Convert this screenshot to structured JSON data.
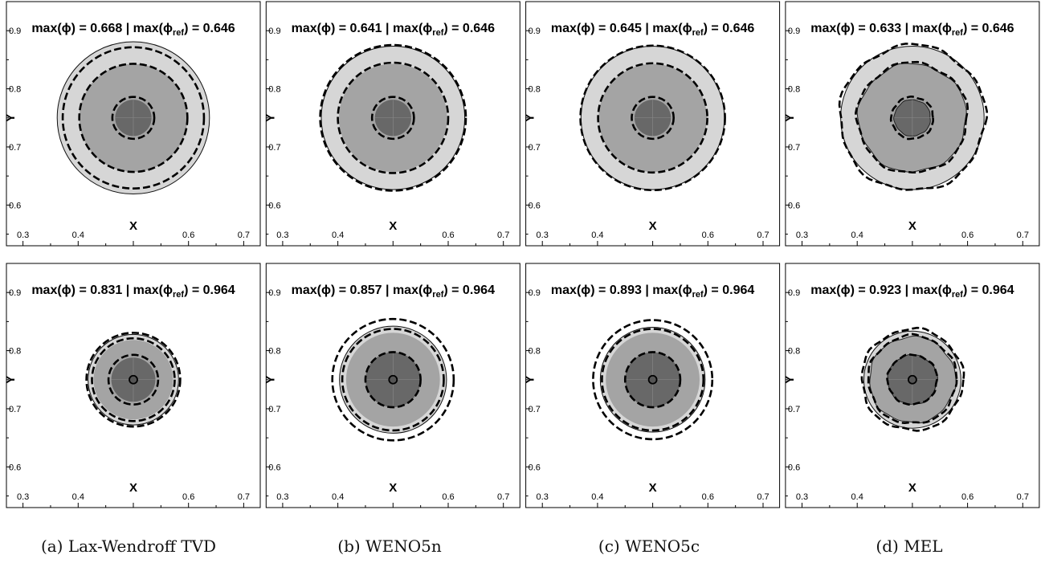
{
  "figure": {
    "x_axis_label": "X",
    "y_axis_label": "Y",
    "x_ticks": [
      "0.3",
      "0.4",
      "0.5",
      "0.6",
      "0.7"
    ],
    "y_ticks": [
      "0.6",
      "0.7",
      "0.8",
      "0.9"
    ],
    "colors": {
      "outer_band": "#d6d6d6",
      "middle_band": "#a4a4a4",
      "core": "#686868",
      "contour": "#000000",
      "frame": "#000000"
    },
    "captions": [
      {
        "tag": "(a)",
        "label": "Lax-Wendroff TVD"
      },
      {
        "tag": "(b)",
        "label": "WENO5n"
      },
      {
        "tag": "(c)",
        "label": "WENO5c"
      },
      {
        "tag": "(d)",
        "label": "MEL"
      }
    ]
  },
  "chart_data": [
    {
      "type": "contour",
      "row": 1,
      "col": 1,
      "max_phi": "0.668",
      "max_phi_ref": "0.646",
      "xlim": [
        0.27,
        0.73
      ],
      "ylim": [
        0.53,
        0.95
      ],
      "center": [
        0.5,
        0.75
      ],
      "filled_radii": [
        0.138,
        0.098,
        0.033
      ],
      "dashed_radii": [
        0.128,
        0.098,
        0.038
      ],
      "solid_outer_radius": 0.138,
      "dot": false,
      "irregular": false
    },
    {
      "type": "contour",
      "row": 1,
      "col": 2,
      "max_phi": "0.641",
      "max_phi_ref": "0.646",
      "xlim": [
        0.27,
        0.73
      ],
      "ylim": [
        0.53,
        0.95
      ],
      "center": [
        0.5,
        0.75
      ],
      "filled_radii": [
        0.13,
        0.098,
        0.033
      ],
      "dashed_radii": [
        0.132,
        0.1,
        0.038
      ],
      "solid_outer_radius": 0.13,
      "dot": false,
      "irregular": false
    },
    {
      "type": "contour",
      "row": 1,
      "col": 3,
      "max_phi": "0.645",
      "max_phi_ref": "0.646",
      "xlim": [
        0.27,
        0.73
      ],
      "ylim": [
        0.53,
        0.95
      ],
      "center": [
        0.5,
        0.75
      ],
      "filled_radii": [
        0.13,
        0.098,
        0.033
      ],
      "dashed_radii": [
        0.131,
        0.099,
        0.038
      ],
      "solid_outer_radius": 0.13,
      "dot": false,
      "irregular": false
    },
    {
      "type": "contour",
      "row": 1,
      "col": 4,
      "max_phi": "0.633",
      "max_phi_ref": "0.646",
      "xlim": [
        0.27,
        0.73
      ],
      "ylim": [
        0.53,
        0.95
      ],
      "center": [
        0.5,
        0.75
      ],
      "filled_radii": [
        0.13,
        0.098,
        0.033
      ],
      "dashed_radii": [
        0.132,
        0.1,
        0.038
      ],
      "solid_outer_radius": 0.13,
      "dot": false,
      "irregular": true
    },
    {
      "type": "contour",
      "row": 2,
      "col": 1,
      "max_phi": "0.831",
      "max_phi_ref": "0.964",
      "xlim": [
        0.27,
        0.73
      ],
      "ylim": [
        0.53,
        0.95
      ],
      "center": [
        0.5,
        0.75
      ],
      "filled_radii": [
        0.082,
        0.072,
        0.04
      ],
      "dashed_radii": [
        0.085,
        0.075,
        0.045
      ],
      "solid_outer_radius": 0.082,
      "dot": true,
      "irregular": false
    },
    {
      "type": "contour",
      "row": 2,
      "col": 2,
      "max_phi": "0.857",
      "max_phi_ref": "0.964",
      "xlim": [
        0.27,
        0.73
      ],
      "ylim": [
        0.53,
        0.95
      ],
      "center": [
        0.5,
        0.75
      ],
      "filled_radii": [
        0.097,
        0.085,
        0.05
      ],
      "dashed_radii": [
        0.11,
        0.092,
        0.05
      ],
      "solid_outer_radius": 0.097,
      "dot": true,
      "irregular": false
    },
    {
      "type": "contour",
      "row": 2,
      "col": 3,
      "max_phi": "0.893",
      "max_phi_ref": "0.964",
      "xlim": [
        0.27,
        0.73
      ],
      "ylim": [
        0.53,
        0.95
      ],
      "center": [
        0.5,
        0.75
      ],
      "filled_radii": [
        0.095,
        0.085,
        0.05
      ],
      "dashed_radii": [
        0.108,
        0.092,
        0.05
      ],
      "solid_outer_radius": 0.095,
      "dot": true,
      "irregular": false
    },
    {
      "type": "contour",
      "row": 2,
      "col": 4,
      "max_phi": "0.923",
      "max_phi_ref": "0.964",
      "xlim": [
        0.27,
        0.73
      ],
      "ylim": [
        0.53,
        0.95
      ],
      "center": [
        0.5,
        0.75
      ],
      "filled_radii": [
        0.088,
        0.078,
        0.045
      ],
      "dashed_radii": [
        0.092,
        0.08,
        0.045
      ],
      "solid_outer_radius": 0.088,
      "dot": true,
      "irregular": true
    }
  ]
}
